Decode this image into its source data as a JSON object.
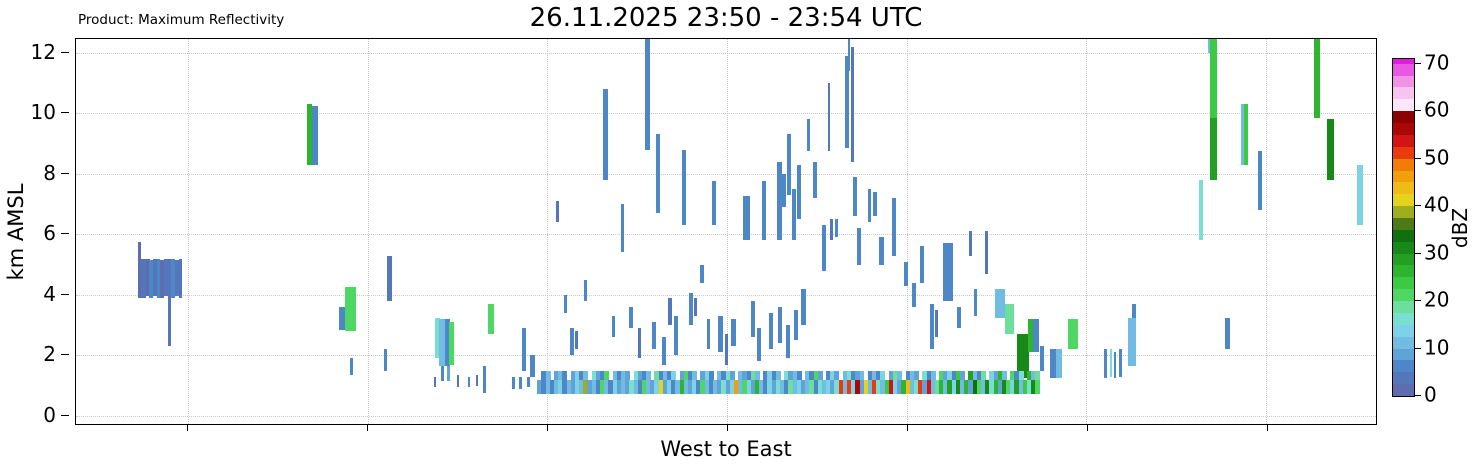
{
  "header": {
    "product_label": "Product: Maximum Reflectivity",
    "title": "26.11.2025 23:50 - 23:54 UTC"
  },
  "axes": {
    "y_label": "km AMSL",
    "x_label": "West to East",
    "y_ticks": [
      0,
      2,
      4,
      6,
      8,
      10,
      12
    ],
    "y_min": -0.33,
    "y_max": 12.45,
    "x_gridlines_pct": [
      8.6,
      22.43,
      36.25,
      50.08,
      63.9,
      77.73,
      91.55
    ],
    "grid_color": "#c9c9c9"
  },
  "colorbar": {
    "label": "dBZ",
    "ticks": [
      0,
      10,
      20,
      30,
      40,
      50,
      60,
      70
    ],
    "min": 0,
    "max": 71,
    "step": 2.5,
    "palette": [
      "#5e6db0",
      "#5377ba",
      "#4e87c7",
      "#5fa3d7",
      "#72bce3",
      "#7dd2e8",
      "#79dfd0",
      "#6ede9e",
      "#4ed763",
      "#3bca41",
      "#2eb530",
      "#23a023",
      "#188818",
      "#0e700e",
      "#4e7a15",
      "#9fae1f",
      "#e6d31d",
      "#f0bb16",
      "#f29f0e",
      "#f17c07",
      "#ea3b0e",
      "#d11414",
      "#ab0707",
      "#8b0000",
      "#fbe7f8",
      "#f7c3ef",
      "#f092e6",
      "#e958e2",
      "#dd1fdd"
    ]
  },
  "chart_data": {
    "type": "bar",
    "title": "26.11.2025 23:50 - 23:54 UTC",
    "subtitle": "Product: Maximum Reflectivity",
    "xlabel": "West to East",
    "ylabel": "km AMSL",
    "ylim": [
      -0.33,
      12.45
    ],
    "x_unit": "percent_of_width",
    "value_unit": "dBZ",
    "bars_format": [
      "x_pct",
      "width_pct",
      "km_bottom",
      "km_top",
      "dbz"
    ],
    "bars": [
      [
        4.76,
        0.18,
        3.9,
        5.75,
        2
      ],
      [
        5.0,
        0.35,
        3.9,
        5.2,
        4
      ],
      [
        5.35,
        0.3,
        3.95,
        5.2,
        2
      ],
      [
        5.65,
        0.25,
        3.9,
        5.15,
        5
      ],
      [
        5.9,
        0.3,
        3.95,
        5.2,
        3
      ],
      [
        6.2,
        0.25,
        3.9,
        5.2,
        5
      ],
      [
        6.45,
        0.3,
        3.9,
        5.15,
        2
      ],
      [
        6.75,
        0.35,
        3.95,
        5.2,
        4
      ],
      [
        7.1,
        0.18,
        2.3,
        5.2,
        3
      ],
      [
        7.28,
        0.3,
        3.9,
        5.2,
        5
      ],
      [
        7.6,
        0.25,
        3.95,
        5.15,
        3
      ],
      [
        7.91,
        0.22,
        3.9,
        5.2,
        4
      ],
      [
        17.74,
        0.39,
        8.3,
        10.3,
        25
      ],
      [
        18.13,
        0.46,
        8.3,
        10.25,
        6
      ],
      [
        20.2,
        0.46,
        2.85,
        3.6,
        5
      ],
      [
        20.66,
        0.85,
        2.8,
        4.25,
        22
      ],
      [
        21.04,
        0.2,
        1.35,
        1.9,
        5
      ],
      [
        23.66,
        0.2,
        1.5,
        2.2,
        5
      ],
      [
        23.96,
        0.28,
        3.8,
        5.3,
        4
      ],
      [
        27.5,
        0.12,
        0.95,
        1.3,
        4
      ],
      [
        28.11,
        0.15,
        1.15,
        1.65,
        6
      ],
      [
        28.57,
        0.15,
        1.15,
        1.65,
        8
      ],
      [
        29.34,
        0.12,
        0.95,
        1.35,
        4
      ],
      [
        30.18,
        0.12,
        0.95,
        1.3,
        5
      ],
      [
        30.8,
        0.12,
        1.0,
        1.35,
        4
      ],
      [
        31.34,
        0.14,
        0.75,
        1.65,
        5
      ],
      [
        33.56,
        0.14,
        0.9,
        1.3,
        5
      ],
      [
        34.1,
        0.14,
        0.9,
        1.3,
        5
      ],
      [
        34.72,
        0.14,
        0.95,
        1.3,
        5
      ],
      [
        27.65,
        0.31,
        1.9,
        3.25,
        17
      ],
      [
        27.96,
        0.46,
        1.65,
        3.2,
        11
      ],
      [
        28.42,
        0.31,
        1.65,
        3.2,
        5
      ],
      [
        28.73,
        0.3,
        1.7,
        3.1,
        22
      ],
      [
        31.72,
        0.39,
        2.7,
        3.7,
        22
      ],
      [
        34.33,
        0.25,
        1.5,
        2.9,
        6
      ],
      [
        34.95,
        0.3,
        1.3,
        2.0,
        5
      ],
      [
        36.95,
        0.15,
        6.4,
        7.1,
        4
      ],
      [
        37.5,
        0.2,
        3.4,
        4.0,
        5
      ],
      [
        38.0,
        0.25,
        2.0,
        2.9,
        5
      ],
      [
        38.35,
        0.2,
        2.2,
        2.8,
        4
      ],
      [
        39.1,
        0.2,
        3.8,
        4.5,
        5
      ],
      [
        40.55,
        0.3,
        7.8,
        10.8,
        6
      ],
      [
        41.2,
        0.2,
        2.6,
        3.3,
        5
      ],
      [
        41.9,
        0.25,
        5.4,
        7.0,
        5
      ],
      [
        42.5,
        0.3,
        2.9,
        3.6,
        6
      ],
      [
        43.2,
        0.25,
        1.9,
        2.9,
        4
      ],
      [
        43.78,
        0.3,
        8.8,
        12.44,
        6
      ],
      [
        44.3,
        0.25,
        2.2,
        3.1,
        5
      ],
      [
        44.6,
        0.3,
        6.7,
        9.3,
        6
      ],
      [
        45.1,
        0.25,
        1.7,
        2.6,
        6
      ],
      [
        45.55,
        0.25,
        3.0,
        3.9,
        4
      ],
      [
        46.0,
        0.3,
        2.0,
        3.3,
        5
      ],
      [
        46.6,
        0.3,
        6.3,
        8.8,
        5
      ],
      [
        47.15,
        0.3,
        3.0,
        4.05,
        7
      ],
      [
        47.5,
        0.2,
        3.3,
        3.9,
        4
      ],
      [
        48.0,
        0.25,
        4.4,
        5.0,
        5
      ],
      [
        48.5,
        0.25,
        2.2,
        3.2,
        6
      ],
      [
        48.93,
        0.25,
        6.3,
        7.75,
        5
      ],
      [
        49.4,
        0.3,
        2.1,
        3.3,
        6
      ],
      [
        49.9,
        0.25,
        1.7,
        2.7,
        4
      ],
      [
        50.4,
        0.3,
        2.3,
        3.2,
        5
      ],
      [
        51.3,
        0.5,
        5.8,
        7.25,
        6
      ],
      [
        51.9,
        0.3,
        2.6,
        3.8,
        5
      ],
      [
        52.4,
        0.25,
        1.8,
        2.9,
        6
      ],
      [
        52.77,
        0.3,
        5.8,
        7.75,
        6
      ],
      [
        53.3,
        0.3,
        2.2,
        3.4,
        5
      ],
      [
        53.9,
        0.4,
        5.8,
        8.4,
        6
      ],
      [
        54.3,
        0.25,
        6.9,
        8.0,
        5
      ],
      [
        54.7,
        0.3,
        7.3,
        9.3,
        6
      ],
      [
        55.05,
        0.3,
        5.8,
        7.5,
        5
      ],
      [
        55.45,
        0.3,
        6.5,
        8.3,
        6
      ],
      [
        54.0,
        0.3,
        2.4,
        3.6,
        5
      ],
      [
        54.6,
        0.3,
        1.9,
        3.0,
        6
      ],
      [
        55.2,
        0.3,
        2.5,
        3.5,
        5
      ],
      [
        55.8,
        0.3,
        3.0,
        4.2,
        6
      ],
      [
        56.2,
        0.25,
        8.75,
        9.8,
        6
      ],
      [
        56.7,
        0.25,
        7.2,
        8.4,
        6
      ],
      [
        57.4,
        0.25,
        4.8,
        6.3,
        5
      ],
      [
        57.85,
        0.12,
        8.75,
        11.0,
        3
      ],
      [
        58.0,
        0.2,
        5.8,
        6.5,
        4
      ],
      [
        58.35,
        0.2,
        5.9,
        6.5,
        5
      ],
      [
        59.15,
        0.3,
        8.85,
        11.9,
        6
      ],
      [
        59.35,
        0.15,
        11.4,
        12.44,
        5
      ],
      [
        59.6,
        0.2,
        8.4,
        12.2,
        4
      ],
      [
        59.75,
        0.25,
        6.6,
        7.9,
        5
      ],
      [
        60.1,
        0.25,
        5.0,
        6.2,
        6
      ],
      [
        60.9,
        0.25,
        6.4,
        7.5,
        5
      ],
      [
        61.3,
        0.25,
        6.6,
        7.4,
        5
      ],
      [
        61.8,
        0.3,
        5.0,
        5.9,
        6
      ],
      [
        62.8,
        0.25,
        5.3,
        7.2,
        5
      ],
      [
        63.7,
        0.3,
        4.3,
        5.1,
        6
      ],
      [
        64.3,
        0.25,
        3.6,
        4.4,
        5
      ],
      [
        64.9,
        0.3,
        4.4,
        5.6,
        6
      ],
      [
        65.7,
        0.3,
        2.2,
        3.7,
        5
      ],
      [
        66.05,
        0.25,
        2.6,
        3.5,
        4
      ],
      [
        66.7,
        0.75,
        3.8,
        5.7,
        7
      ],
      [
        67.8,
        0.25,
        2.9,
        3.6,
        5
      ],
      [
        68.7,
        0.18,
        5.3,
        6.1,
        4
      ],
      [
        69.1,
        0.2,
        3.3,
        4.2,
        5
      ],
      [
        69.9,
        0.18,
        4.7,
        6.1,
        4
      ],
      [
        70.7,
        0.75,
        3.25,
        4.2,
        11
      ],
      [
        71.45,
        0.7,
        2.7,
        3.7,
        18
      ],
      [
        72.4,
        0.9,
        1.25,
        2.7,
        30
      ],
      [
        73.2,
        0.55,
        2.1,
        3.2,
        27
      ],
      [
        73.6,
        0.45,
        2.1,
        3.2,
        6
      ],
      [
        74.15,
        0.25,
        1.5,
        2.3,
        5
      ],
      [
        74.9,
        0.45,
        1.25,
        2.2,
        6
      ],
      [
        75.35,
        0.45,
        1.25,
        2.2,
        12
      ],
      [
        76.3,
        0.75,
        2.2,
        3.2,
        20
      ],
      [
        79.1,
        0.18,
        1.25,
        2.2,
        5
      ],
      [
        79.5,
        0.12,
        1.3,
        2.2,
        16
      ],
      [
        79.85,
        0.15,
        1.25,
        2.1,
        5
      ],
      [
        80.25,
        0.15,
        1.3,
        2.2,
        5
      ],
      [
        80.9,
        0.6,
        1.65,
        3.25,
        11
      ],
      [
        81.2,
        0.28,
        3.25,
        3.7,
        5
      ],
      [
        86.35,
        0.3,
        5.8,
        7.8,
        16
      ],
      [
        87.1,
        0.3,
        12.0,
        12.44,
        12
      ],
      [
        87.2,
        0.5,
        9.85,
        12.44,
        24
      ],
      [
        87.25,
        0.45,
        7.8,
        9.85,
        28
      ],
      [
        88.4,
        0.3,
        2.2,
        3.25,
        5
      ],
      [
        89.6,
        0.25,
        8.3,
        10.3,
        10
      ],
      [
        89.85,
        0.3,
        8.3,
        10.3,
        24
      ],
      [
        90.9,
        0.3,
        6.8,
        8.75,
        6
      ],
      [
        95.25,
        0.38,
        9.85,
        12.44,
        25
      ],
      [
        96.25,
        0.5,
        7.8,
        9.8,
        31
      ],
      [
        98.55,
        0.38,
        6.3,
        8.3,
        13
      ]
    ],
    "low_band": {
      "x0_pct": 35.48,
      "seg_w_pct": 0.322,
      "km_bottom": 0.73,
      "km_top": 1.2,
      "values": [
        9,
        5,
        12,
        7,
        10,
        13,
        6,
        11,
        8,
        14,
        10,
        39,
        8,
        12,
        6,
        21,
        10,
        7,
        13,
        9,
        12,
        8,
        15,
        10,
        6,
        22,
        11,
        9,
        13,
        41,
        9,
        13,
        7,
        11,
        25,
        10,
        8,
        14,
        6,
        20,
        10,
        7,
        12,
        9,
        15,
        8,
        13,
        47,
        10,
        22,
        14,
        8,
        25,
        11,
        7,
        13,
        9,
        16,
        11,
        7,
        18,
        10,
        14,
        8,
        12,
        19,
        6,
        15,
        10,
        13,
        9,
        17,
        52,
        11,
        50,
        14,
        56,
        9,
        42,
        12,
        51,
        16,
        10,
        23,
        53,
        13,
        8,
        27,
        44,
        11,
        15,
        50,
        9,
        54,
        12,
        18,
        25,
        10,
        29,
        14,
        31,
        12,
        27,
        9,
        33,
        22,
        11,
        30,
        16,
        25,
        8,
        32,
        20,
        13,
        28,
        10,
        24,
        15,
        30,
        21
      ]
    },
    "mid_band": {
      "x0_pct": 35.48,
      "seg_w_pct": 0.322,
      "km_bottom": 1.2,
      "km_top": 1.5,
      "values": [
        -1,
        6,
        10,
        -1,
        8,
        12,
        5,
        -1,
        9,
        14,
        7,
        11,
        -1,
        16,
        8,
        5,
        20,
        -1,
        10,
        6,
        12,
        8,
        -1,
        15,
        9,
        6,
        11,
        -1,
        18,
        7,
        10,
        5,
        13,
        -1,
        8,
        22,
        6,
        11,
        -1,
        9,
        14,
        7,
        -1,
        10,
        6,
        16,
        9,
        -1,
        12,
        8,
        5,
        18,
        10,
        -1,
        7,
        13,
        6,
        10,
        -1,
        15,
        8,
        11,
        5,
        -1,
        12,
        7,
        20,
        9,
        -1,
        6,
        13,
        8,
        -1,
        10,
        16,
        5,
        9,
        12,
        -1,
        7,
        11,
        6,
        14,
        -1,
        8,
        18,
        10,
        -1,
        5,
        12,
        9,
        -1,
        15,
        7,
        10,
        -1,
        22,
        8,
        13,
        6,
        24,
        9,
        -1,
        28,
        11,
        6,
        19,
        -1,
        14,
        8,
        25,
        10,
        -1,
        21,
        7,
        16,
        -1,
        26,
        12,
        18
      ]
    }
  }
}
